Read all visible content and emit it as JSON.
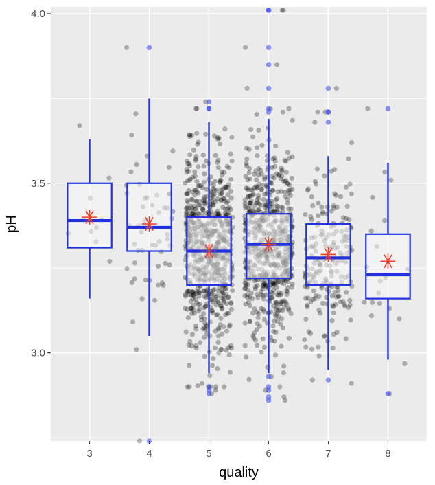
{
  "chart_data": {
    "type": "boxplot",
    "title": "",
    "xlabel": "quality",
    "ylabel": "pH",
    "categories": [
      "3",
      "4",
      "5",
      "6",
      "7",
      "8"
    ],
    "y_ticks": [
      "3.0",
      "3.5",
      "4.0"
    ],
    "ylim": [
      2.74,
      4.02
    ],
    "grid": true,
    "overlays": [
      "jittered points (black, semi-transparent)",
      "box plot (blue outline)",
      "mean marker (red asterisk)"
    ],
    "colors": {
      "panel_background": "#ebebeb",
      "grid": "#ffffff",
      "box_outline": "#2233dd",
      "box_fill": "#f7f7f7",
      "jitter_points": "#000000",
      "outlier_points": "#3344ee",
      "mean_marker": "#e8412c"
    },
    "boxes": [
      {
        "quality": "3",
        "lower_whisker": 3.16,
        "q1": 3.31,
        "median": 3.39,
        "q3": 3.5,
        "upper_whisker": 3.63,
        "mean": 3.4,
        "outliers": []
      },
      {
        "quality": "4",
        "lower_whisker": 3.05,
        "q1": 3.3,
        "median": 3.37,
        "q3": 3.5,
        "upper_whisker": 3.75,
        "mean": 3.38,
        "outliers": [
          3.9,
          2.74
        ]
      },
      {
        "quality": "5",
        "lower_whisker": 2.94,
        "q1": 3.2,
        "median": 3.3,
        "q3": 3.4,
        "upper_whisker": 3.68,
        "mean": 3.3,
        "outliers": [
          3.74,
          3.72,
          3.72,
          2.89,
          2.88,
          2.9
        ]
      },
      {
        "quality": "6",
        "lower_whisker": 2.94,
        "q1": 3.22,
        "median": 3.32,
        "q3": 3.41,
        "upper_whisker": 3.69,
        "mean": 3.32,
        "outliers": [
          4.01,
          4.01,
          3.9,
          3.85,
          3.78,
          3.72,
          3.71,
          2.93,
          2.9,
          2.89,
          2.87,
          2.86
        ]
      },
      {
        "quality": "7",
        "lower_whisker": 2.95,
        "q1": 3.2,
        "median": 3.28,
        "q3": 3.38,
        "upper_whisker": 3.58,
        "mean": 3.29,
        "outliers": [
          3.78,
          3.71,
          3.71,
          3.68,
          2.92
        ]
      },
      {
        "quality": "8",
        "lower_whisker": 2.98,
        "q1": 3.16,
        "median": 3.23,
        "q3": 3.35,
        "upper_whisker": 3.56,
        "mean": 3.27,
        "outliers": [
          3.72,
          2.88
        ]
      }
    ],
    "jitter_counts": [
      10,
      53,
      681,
      638,
      199,
      18
    ]
  }
}
